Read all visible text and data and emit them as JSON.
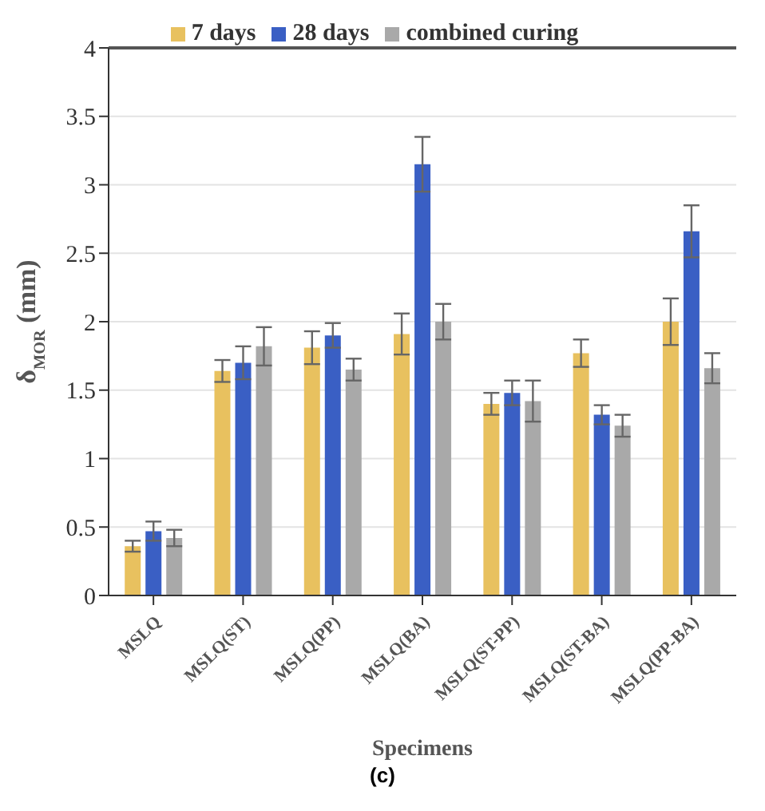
{
  "chart_data": {
    "type": "bar",
    "xlabel": "Specimens",
    "ylabel": "δ$_{MOR}$  (mm)",
    "annotations": [
      "(c)"
    ],
    "categories": [
      "MSLQ",
      "MSLQ(ST)",
      "MSLQ(PP)",
      "MSLQ(BA)",
      "MSLQ(ST-PP)",
      "MSLQ(ST-BA)",
      "MSLQ(PP-BA)"
    ],
    "series": [
      {
        "name": "7 days",
        "color": "#e8c15f",
        "values": [
          0.36,
          1.64,
          1.81,
          1.91,
          1.4,
          1.77,
          2.0
        ],
        "errors": [
          0.04,
          0.08,
          0.12,
          0.15,
          0.08,
          0.1,
          0.17
        ]
      },
      {
        "name": "28 days",
        "color": "#3a5fc4",
        "values": [
          0.47,
          1.7,
          1.9,
          3.15,
          1.48,
          1.32,
          2.66
        ],
        "errors": [
          0.07,
          0.12,
          0.09,
          0.2,
          0.09,
          0.07,
          0.19
        ]
      },
      {
        "name": "combined curing",
        "color": "#a9a9a9",
        "values": [
          0.42,
          1.82,
          1.65,
          2.0,
          1.42,
          1.24,
          1.66
        ],
        "errors": [
          0.06,
          0.14,
          0.08,
          0.13,
          0.15,
          0.08,
          0.11
        ]
      }
    ],
    "ylim": [
      0,
      4
    ],
    "yticks": [
      0,
      0.5,
      1,
      1.5,
      2,
      2.5,
      3,
      3.5,
      4
    ],
    "grid": "y",
    "legend": "top"
  }
}
